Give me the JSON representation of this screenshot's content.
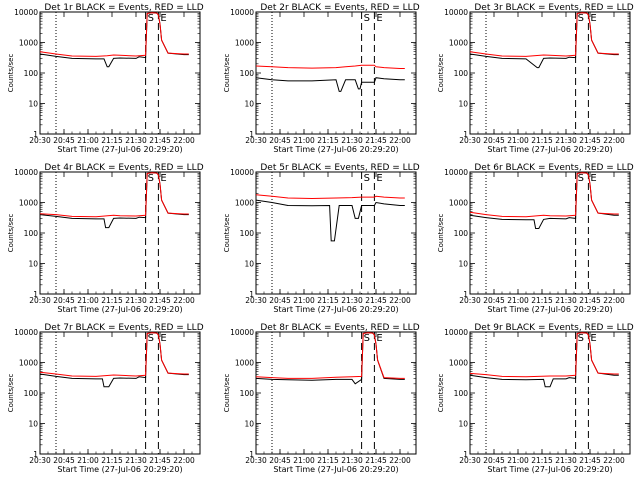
{
  "chart_data": {
    "type": "line",
    "layout": "3x3 grid",
    "y_scale": "log",
    "ylim": [
      1,
      10000
    ],
    "ytick_labels": [
      "1",
      "10",
      "100",
      "1000",
      "10000"
    ],
    "ytick_values": [
      1,
      10,
      100,
      1000,
      10000
    ],
    "xlim": [
      "20:30",
      "22:10"
    ],
    "xtick_labels": [
      "20:30",
      "20:45",
      "21:00",
      "21:15",
      "21:30",
      "21:45",
      "22:00"
    ],
    "xtick_minutes": [
      1230,
      1245,
      1260,
      1275,
      1290,
      1305,
      1320
    ],
    "xlabel": "Start Time (27-Jul-06 20:29:20)",
    "ylabel": "Counts/sec",
    "series_colors": {
      "events": "#000000",
      "lld": "#ff0000"
    },
    "markers": [
      {
        "label": "",
        "time": "20:40",
        "minute": 1240,
        "style": "dotted"
      },
      {
        "label": "S",
        "time": "21:36",
        "minute": 1296,
        "style": "dashed"
      },
      {
        "label": "E",
        "time": "21:44",
        "minute": 1304,
        "style": "dashed"
      }
    ],
    "charts": [
      {
        "title": "Det 1r BLACK = Events, RED = LLD",
        "series": [
          {
            "key": "events",
            "x": [
              1230,
              1240,
              1250,
              1265,
              1270,
              1272,
              1273,
              1276,
              1280,
              1290,
              1292,
              1296,
              1297,
              1300,
              1303,
              1304,
              1305,
              1306,
              1310,
              1320,
              1323
            ],
            "y": [
              420,
              350,
              300,
              290,
              290,
              160,
              160,
              300,
              310,
              300,
              340,
              320,
              9000,
              9500,
              9200,
              8000,
              4000,
              1200,
              450,
              400,
              400
            ]
          },
          {
            "key": "lld",
            "x": [
              1230,
              1240,
              1250,
              1265,
              1272,
              1276,
              1280,
              1290,
              1296,
              1297,
              1300,
              1303,
              1304,
              1305,
              1306,
              1310,
              1320,
              1323
            ],
            "y": [
              500,
              420,
              360,
              350,
              370,
              390,
              380,
              360,
              380,
              9000,
              9500,
              9200,
              8000,
              4000,
              1200,
              450,
              420,
              420
            ]
          }
        ]
      },
      {
        "title": "Det 2r BLACK = Events, RED = LLD",
        "series": [
          {
            "key": "events",
            "x": [
              1230,
              1240,
              1250,
              1265,
              1280,
              1282,
              1283,
              1286,
              1292,
              1294,
              1295,
              1296,
              1304,
              1305,
              1310,
              1320,
              1323
            ],
            "y": [
              70,
              60,
              55,
              55,
              60,
              25,
              25,
              60,
              60,
              30,
              30,
              50,
              50,
              70,
              65,
              60,
              60
            ]
          },
          {
            "key": "lld",
            "x": [
              1230,
              1240,
              1250,
              1265,
              1280,
              1286,
              1292,
              1296,
              1304,
              1305,
              1310,
              1320,
              1323
            ],
            "y": [
              170,
              160,
              150,
              145,
              150,
              160,
              170,
              180,
              180,
              160,
              150,
              140,
              140
            ]
          }
        ]
      },
      {
        "title": "Det 3r BLACK = Events, RED = LLD",
        "series": [
          {
            "key": "events",
            "x": [
              1230,
              1240,
              1250,
              1265,
              1272,
              1273,
              1276,
              1280,
              1290,
              1292,
              1296,
              1297,
              1300,
              1303,
              1304,
              1305,
              1306,
              1310,
              1320,
              1323
            ],
            "y": [
              420,
              350,
              300,
              290,
              150,
              150,
              300,
              310,
              300,
              330,
              320,
              9000,
              9500,
              9200,
              8000,
              4000,
              1200,
              450,
              400,
              400
            ]
          },
          {
            "key": "lld",
            "x": [
              1230,
              1240,
              1250,
              1265,
              1276,
              1280,
              1290,
              1296,
              1297,
              1300,
              1303,
              1304,
              1305,
              1306,
              1310,
              1320,
              1323
            ],
            "y": [
              500,
              420,
              360,
              350,
              390,
              380,
              360,
              380,
              9000,
              9500,
              9200,
              8000,
              4000,
              1200,
              450,
              420,
              420
            ]
          }
        ]
      },
      {
        "title": "Det 4r BLACK = Events, RED = LLD",
        "series": [
          {
            "key": "events",
            "x": [
              1230,
              1240,
              1250,
              1265,
              1270,
              1271,
              1273,
              1276,
              1280,
              1290,
              1292,
              1296,
              1297,
              1300,
              1303,
              1304,
              1305,
              1306,
              1310,
              1320,
              1323
            ],
            "y": [
              400,
              350,
              300,
              290,
              290,
              150,
              150,
              300,
              310,
              300,
              330,
              320,
              9000,
              9500,
              9200,
              8000,
              4000,
              1200,
              450,
              400,
              400
            ]
          },
          {
            "key": "lld",
            "x": [
              1230,
              1240,
              1250,
              1265,
              1276,
              1280,
              1290,
              1296,
              1297,
              1300,
              1303,
              1304,
              1305,
              1306,
              1310,
              1320,
              1323
            ],
            "y": [
              430,
              400,
              350,
              340,
              380,
              370,
              360,
              380,
              9000,
              9500,
              9200,
              8000,
              4000,
              1200,
              450,
              420,
              420
            ]
          }
        ]
      },
      {
        "title": "Det 5r BLACK = Events, RED = LLD",
        "series": [
          {
            "key": "events",
            "x": [
              1230,
              1240,
              1250,
              1265,
              1276,
              1277,
              1279,
              1282,
              1290,
              1292,
              1294,
              1296,
              1304,
              1305,
              1310,
              1320,
              1323
            ],
            "y": [
              1200,
              1000,
              800,
              780,
              800,
              55,
              55,
              800,
              800,
              300,
              300,
              800,
              800,
              1000,
              900,
              800,
              800
            ]
          },
          {
            "key": "lld",
            "x": [
              1230,
              1240,
              1250,
              1265,
              1280,
              1290,
              1296,
              1304,
              1305,
              1310,
              1320,
              1323
            ],
            "y": [
              1800,
              1600,
              1400,
              1350,
              1400,
              1450,
              1500,
              1500,
              1600,
              1500,
              1400,
              1400
            ]
          }
        ]
      },
      {
        "title": "Det 6r BLACK = Events, RED = LLD",
        "series": [
          {
            "key": "events",
            "x": [
              1230,
              1240,
              1250,
              1265,
              1270,
              1271,
              1273,
              1276,
              1280,
              1290,
              1292,
              1296,
              1297,
              1300,
              1303,
              1304,
              1305,
              1306,
              1310,
              1320,
              1323
            ],
            "y": [
              380,
              320,
              280,
              270,
              270,
              140,
              140,
              280,
              300,
              290,
              320,
              300,
              9000,
              9500,
              9200,
              8000,
              4000,
              1200,
              450,
              380,
              380
            ]
          },
          {
            "key": "lld",
            "x": [
              1230,
              1240,
              1250,
              1265,
              1276,
              1280,
              1290,
              1296,
              1297,
              1300,
              1303,
              1304,
              1305,
              1306,
              1310,
              1320,
              1323
            ],
            "y": [
              480,
              400,
              350,
              340,
              380,
              370,
              360,
              380,
              9000,
              9500,
              9200,
              8000,
              4000,
              1200,
              450,
              420,
              420
            ]
          }
        ]
      },
      {
        "title": "Det 7r BLACK = Events, RED = LLD",
        "series": [
          {
            "key": "events",
            "x": [
              1230,
              1240,
              1250,
              1265,
              1269,
              1270,
              1273,
              1276,
              1280,
              1290,
              1292,
              1296,
              1297,
              1300,
              1303,
              1304,
              1305,
              1306,
              1310,
              1320,
              1323
            ],
            "y": [
              420,
              350,
              300,
              290,
              290,
              160,
              160,
              300,
              310,
              300,
              340,
              320,
              9000,
              9500,
              9200,
              8000,
              4000,
              1200,
              450,
              400,
              400
            ]
          },
          {
            "key": "lld",
            "x": [
              1230,
              1240,
              1250,
              1265,
              1276,
              1280,
              1290,
              1296,
              1297,
              1300,
              1303,
              1304,
              1305,
              1306,
              1310,
              1320,
              1323
            ],
            "y": [
              480,
              420,
              360,
              350,
              390,
              380,
              360,
              380,
              9000,
              9500,
              9200,
              8000,
              4000,
              1200,
              450,
              420,
              420
            ]
          }
        ]
      },
      {
        "title": "Det 8r BLACK = Events, RED = LLD",
        "series": [
          {
            "key": "events",
            "x": [
              1230,
              1240,
              1250,
              1265,
              1280,
              1290,
              1292,
              1296,
              1297,
              1300,
              1303,
              1304,
              1305,
              1306,
              1310,
              1320,
              1323
            ],
            "y": [
              300,
              280,
              270,
              260,
              280,
              280,
              200,
              280,
              9000,
              9500,
              9200,
              8000,
              4000,
              1200,
              300,
              280,
              280
            ]
          },
          {
            "key": "lld",
            "x": [
              1230,
              1240,
              1250,
              1265,
              1280,
              1290,
              1296,
              1297,
              1300,
              1303,
              1304,
              1305,
              1306,
              1310,
              1320,
              1323
            ],
            "y": [
              340,
              320,
              300,
              300,
              330,
              340,
              350,
              9000,
              9500,
              9200,
              8000,
              4000,
              1200,
              320,
              300,
              300
            ]
          }
        ]
      },
      {
        "title": "Det 9r BLACK = Events, RED = LLD",
        "series": [
          {
            "key": "events",
            "x": [
              1230,
              1240,
              1250,
              1265,
              1276,
              1277,
              1280,
              1282,
              1290,
              1292,
              1296,
              1297,
              1300,
              1303,
              1304,
              1305,
              1306,
              1310,
              1320,
              1323
            ],
            "y": [
              380,
              320,
              280,
              270,
              280,
              160,
              160,
              290,
              290,
              320,
              300,
              9000,
              9500,
              9200,
              8000,
              4000,
              1200,
              450,
              380,
              380
            ]
          },
          {
            "key": "lld",
            "x": [
              1230,
              1240,
              1250,
              1265,
              1280,
              1290,
              1296,
              1297,
              1300,
              1303,
              1304,
              1305,
              1306,
              1310,
              1320,
              1323
            ],
            "y": [
              440,
              400,
              350,
              340,
              360,
              360,
              380,
              9000,
              9500,
              9200,
              8000,
              4000,
              1200,
              450,
              420,
              420
            ]
          }
        ]
      }
    ]
  }
}
